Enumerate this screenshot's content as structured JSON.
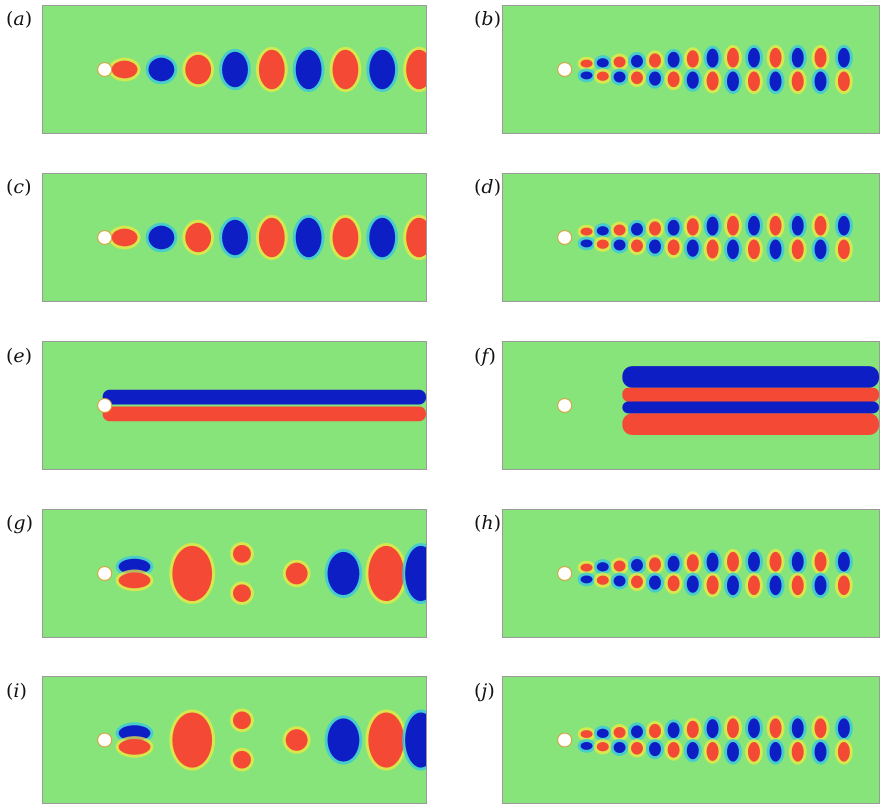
{
  "panels": [
    {
      "id": "a",
      "label": "(a)",
      "pattern": "single"
    },
    {
      "id": "b",
      "label": "(b)",
      "pattern": "double"
    },
    {
      "id": "c",
      "label": "(c)",
      "pattern": "single"
    },
    {
      "id": "d",
      "label": "(d)",
      "pattern": "double"
    },
    {
      "id": "e",
      "label": "(e)",
      "pattern": "steady"
    },
    {
      "id": "f",
      "label": "(f)",
      "pattern": "steady-wavy"
    },
    {
      "id": "g",
      "label": "(g)",
      "pattern": "mixed"
    },
    {
      "id": "h",
      "label": "(h)",
      "pattern": "double"
    },
    {
      "id": "i",
      "label": "(i)",
      "pattern": "mixed"
    },
    {
      "id": "j",
      "label": "(j)",
      "pattern": "double"
    }
  ],
  "colors": {
    "background": "#86e47a",
    "positive": "#f44a35",
    "negative": "#0d1fc4",
    "positive_halo": "#f0ea40",
    "negative_halo": "#33c6e6",
    "cylinder": "#ffffff"
  }
}
